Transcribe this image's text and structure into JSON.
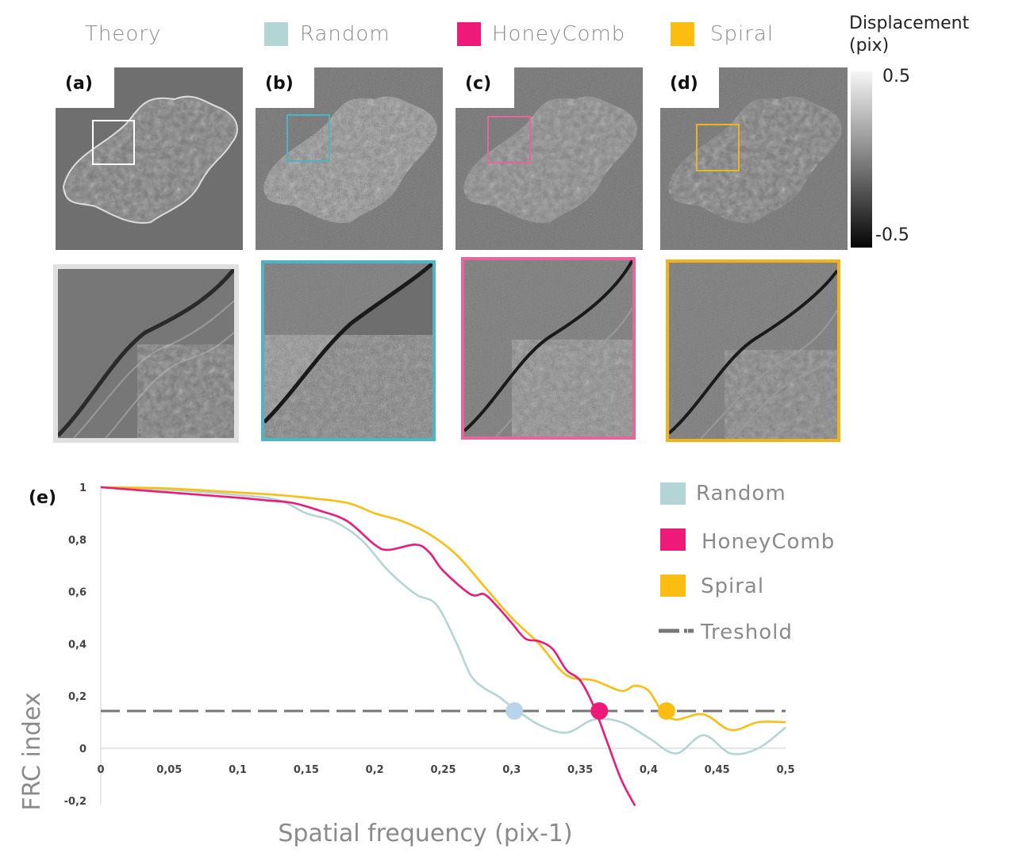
{
  "legend_top": {
    "theory": "Theory",
    "items": [
      {
        "label": "Random",
        "color": "#b3d5d6"
      },
      {
        "label": "HoneyComb",
        "color": "#ee1a7a"
      },
      {
        "label": "Spiral",
        "color": "#fdbd10"
      }
    ]
  },
  "colorbar": {
    "title_line1": "Displacement",
    "title_line2": "(pix)",
    "max_label": "0.5",
    "min_label": "-0.5"
  },
  "panels": [
    {
      "label": "(a)",
      "box_color": "#ffffff",
      "frame_color": "#e0e0e0"
    },
    {
      "label": "(b)",
      "box_color": "#4fb3c2",
      "frame_color": "#4fb3c2"
    },
    {
      "label": "(c)",
      "box_color": "#e8649a",
      "frame_color": "#e8649a"
    },
    {
      "label": "(d)",
      "box_color": "#f2b21c",
      "frame_color": "#f2b21c"
    }
  ],
  "chart_label": "(e)",
  "chart_data": {
    "type": "line",
    "title": "",
    "xlabel": "Spatial frequency (pix-1)",
    "ylabel": "FRC index",
    "xlim": [
      0,
      0.5
    ],
    "ylim": [
      -0.2,
      1
    ],
    "x_ticks": [
      "0",
      "0,05",
      "0,1",
      "0,15",
      "0,2",
      "0,25",
      "0,3",
      "0,35",
      "0,4",
      "0,45",
      "0,5"
    ],
    "y_ticks": [
      "1",
      "0,8",
      "0,6",
      "0,4",
      "0,2",
      "0",
      "-0,2"
    ],
    "legend_position": "right",
    "series": [
      {
        "name": "Random",
        "color": "#b3d5d6",
        "x": [
          0,
          0.05,
          0.1,
          0.13,
          0.15,
          0.17,
          0.19,
          0.21,
          0.23,
          0.245,
          0.26,
          0.27,
          0.28,
          0.29,
          0.3,
          0.32,
          0.34,
          0.36,
          0.38,
          0.4,
          0.42,
          0.44,
          0.46,
          0.48,
          0.5
        ],
        "values": [
          1.0,
          0.99,
          0.97,
          0.95,
          0.9,
          0.87,
          0.8,
          0.68,
          0.59,
          0.55,
          0.4,
          0.28,
          0.23,
          0.2,
          0.16,
          0.09,
          0.06,
          0.11,
          0.1,
          0.04,
          -0.02,
          0.05,
          -0.02,
          0.0,
          0.08
        ]
      },
      {
        "name": "HoneyComb",
        "color": "#ee1a7a",
        "x": [
          0,
          0.05,
          0.1,
          0.12,
          0.14,
          0.16,
          0.18,
          0.2,
          0.21,
          0.23,
          0.24,
          0.25,
          0.27,
          0.28,
          0.29,
          0.3,
          0.31,
          0.32,
          0.33,
          0.34,
          0.35,
          0.36,
          0.37,
          0.38,
          0.39
        ],
        "values": [
          1.0,
          0.98,
          0.96,
          0.95,
          0.94,
          0.91,
          0.87,
          0.78,
          0.76,
          0.78,
          0.75,
          0.68,
          0.59,
          0.59,
          0.54,
          0.48,
          0.42,
          0.41,
          0.38,
          0.3,
          0.26,
          0.16,
          0.02,
          -0.12,
          -0.22
        ]
      },
      {
        "name": "Spiral",
        "color": "#fdbd10",
        "x": [
          0,
          0.05,
          0.1,
          0.13,
          0.15,
          0.18,
          0.2,
          0.22,
          0.24,
          0.26,
          0.28,
          0.3,
          0.32,
          0.34,
          0.36,
          0.38,
          0.39,
          0.4,
          0.41,
          0.42,
          0.44,
          0.46,
          0.48,
          0.5
        ],
        "values": [
          1.0,
          0.995,
          0.98,
          0.97,
          0.96,
          0.94,
          0.9,
          0.87,
          0.82,
          0.74,
          0.62,
          0.5,
          0.4,
          0.28,
          0.26,
          0.22,
          0.24,
          0.22,
          0.14,
          0.11,
          0.13,
          0.07,
          0.1,
          0.1
        ]
      },
      {
        "name": "Treshold",
        "color": "#777777",
        "dashed": true,
        "x": [
          0,
          0.5
        ],
        "values": [
          0.143,
          0.143
        ]
      }
    ],
    "crossings": [
      {
        "series": "Random",
        "x": 0.302,
        "y": 0.143,
        "color": "#b8d4ec"
      },
      {
        "series": "HoneyComb",
        "x": 0.364,
        "y": 0.143,
        "color": "#ee1a7a"
      },
      {
        "series": "Spiral",
        "x": 0.413,
        "y": 0.143,
        "color": "#fdbd10"
      }
    ]
  }
}
